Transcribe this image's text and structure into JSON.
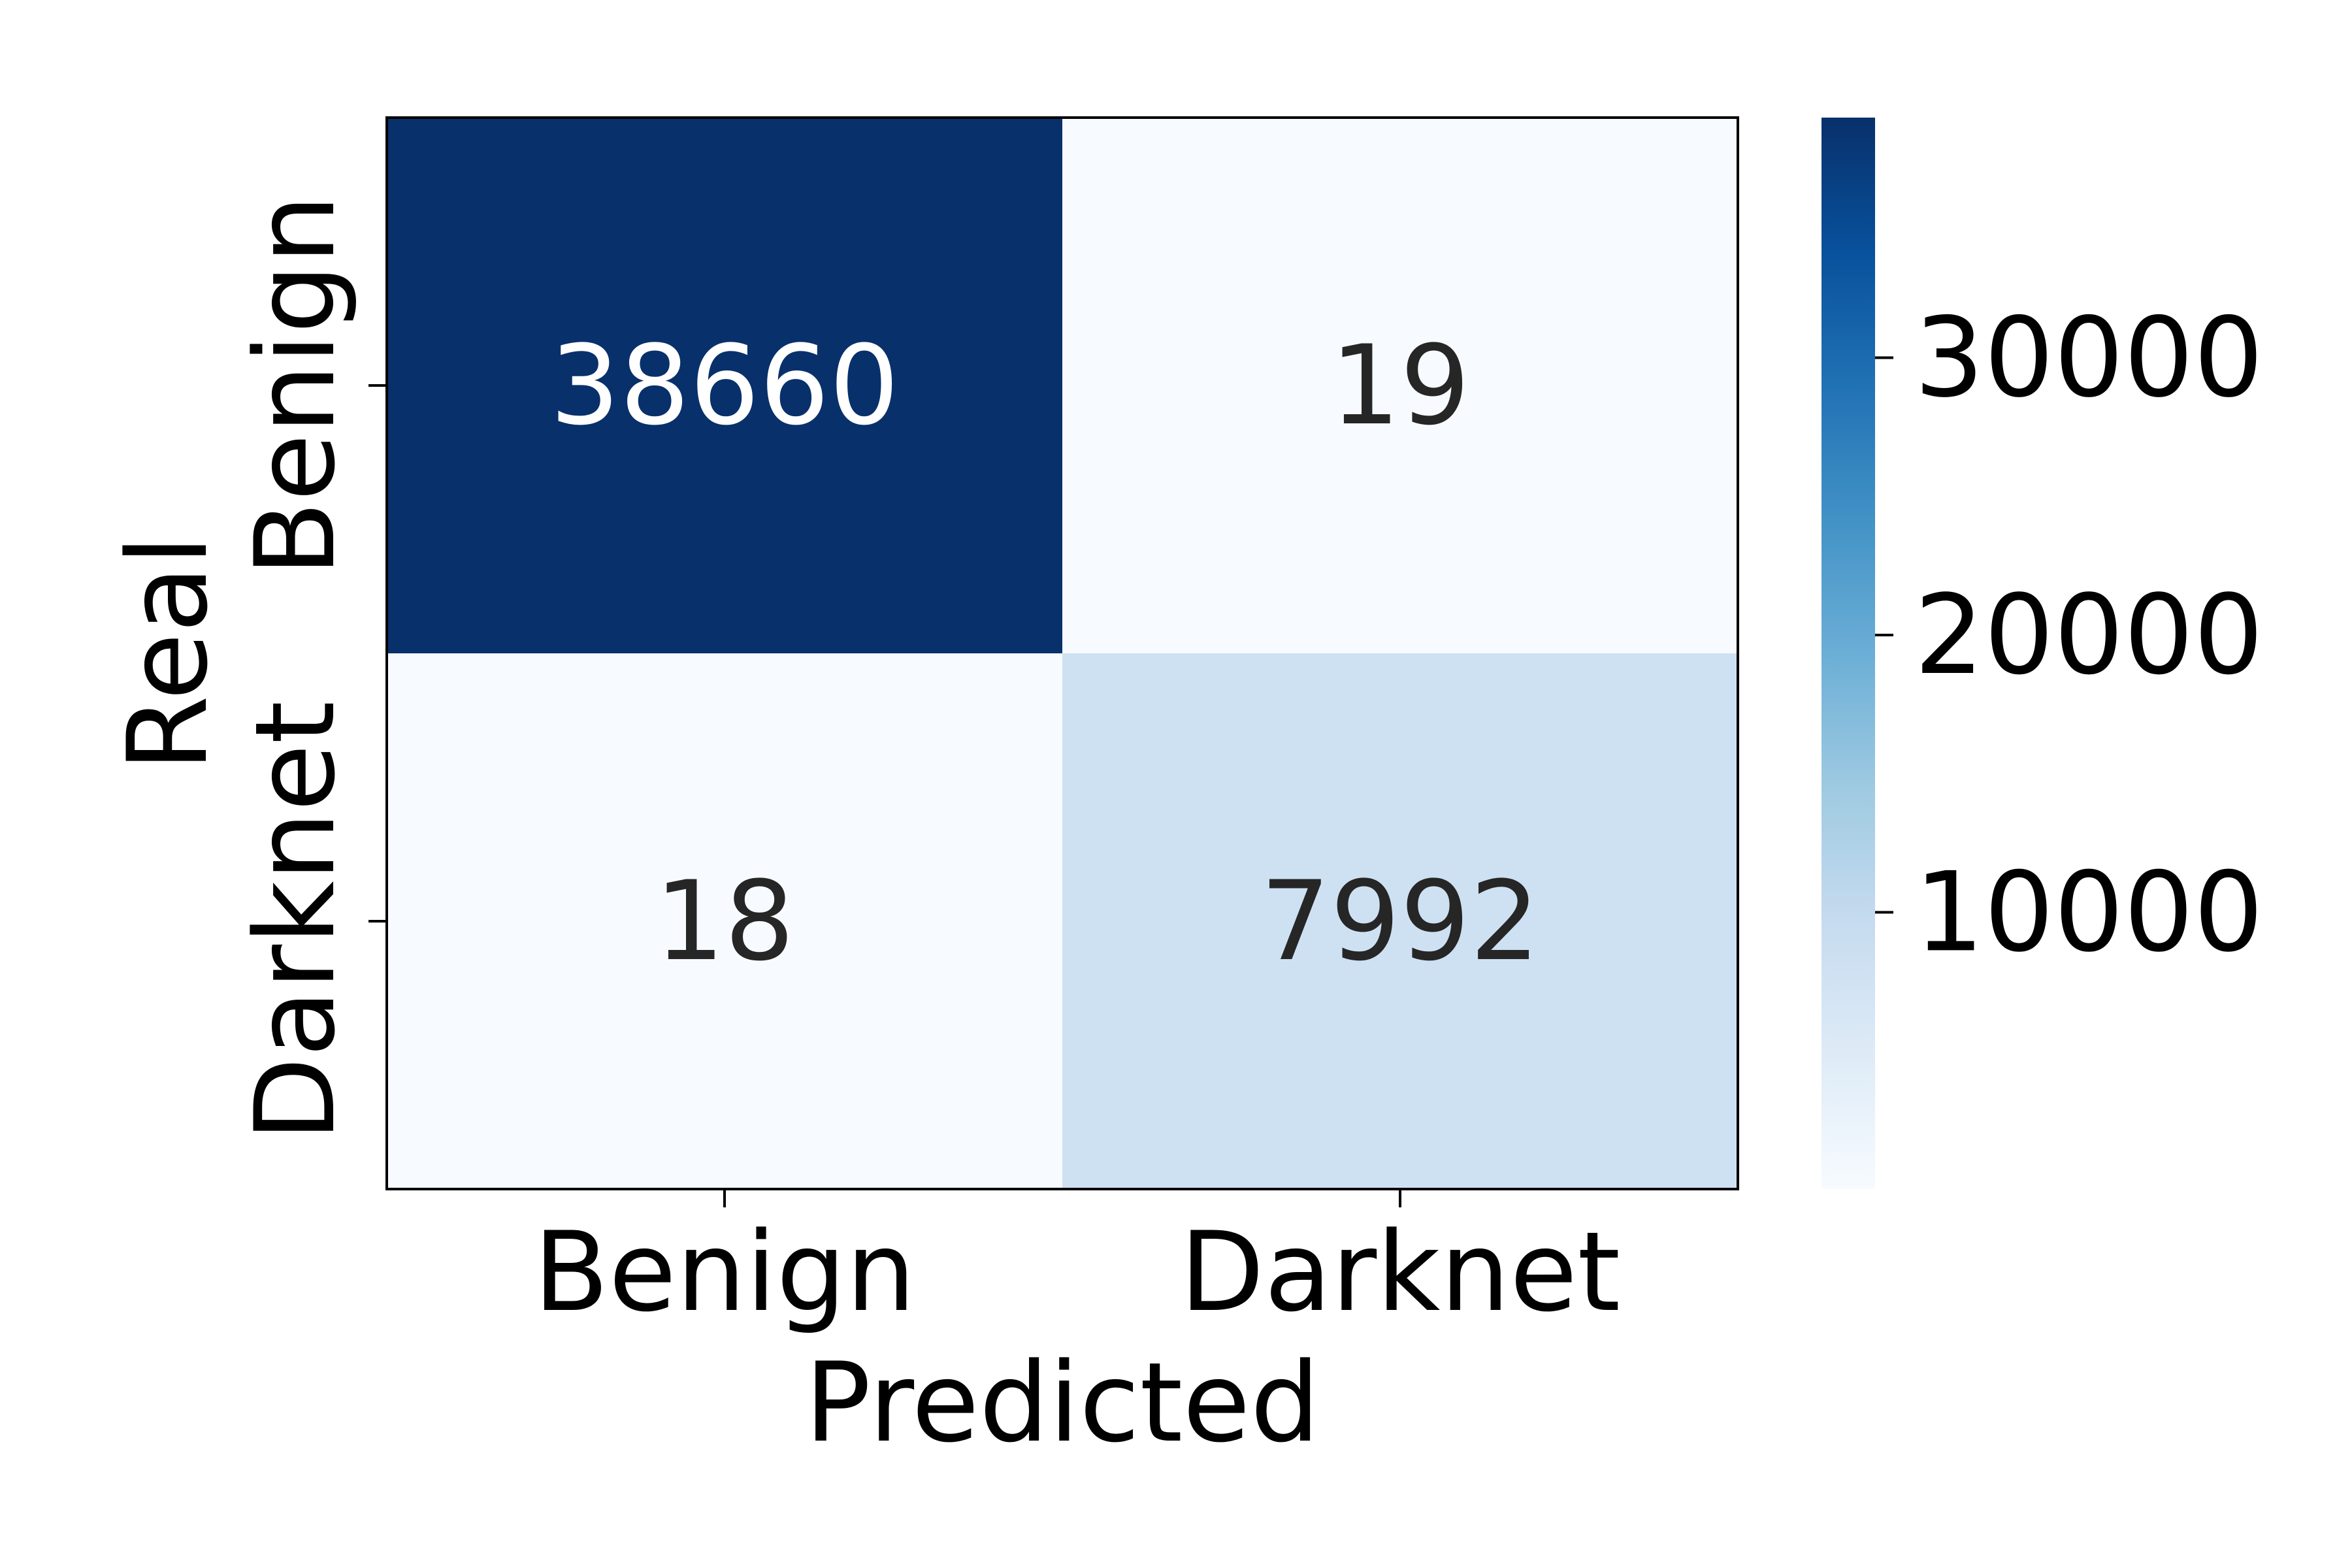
{
  "chart_data": {
    "type": "heatmap",
    "title": "",
    "xlabel": "Predicted",
    "ylabel": "Real",
    "x_categories": [
      "Benign",
      "Darknet"
    ],
    "y_categories": [
      "Benign",
      "Darknet"
    ],
    "values": [
      [
        38660,
        19
      ],
      [
        18,
        7992
      ]
    ],
    "colormap": "Blues",
    "colorbar": {
      "range": [
        18,
        38660
      ],
      "ticks": [
        10000,
        20000,
        30000
      ],
      "tick_labels": [
        "10000",
        "20000",
        "30000"
      ]
    },
    "text_colors": {
      "dark_cell": "#ffffff",
      "light_cell": "#262626"
    },
    "grid": false,
    "legend": "none"
  }
}
